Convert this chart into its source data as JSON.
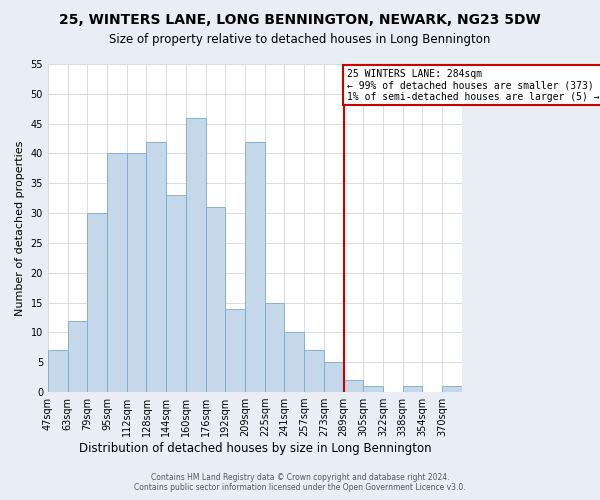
{
  "title": "25, WINTERS LANE, LONG BENNINGTON, NEWARK, NG23 5DW",
  "subtitle": "Size of property relative to detached houses in Long Bennington",
  "xlabel": "Distribution of detached houses by size in Long Bennington",
  "ylabel": "Number of detached properties",
  "footer_line1": "Contains HM Land Registry data © Crown copyright and database right 2024.",
  "footer_line2": "Contains public sector information licensed under the Open Government Licence v3.0.",
  "bin_labels": [
    "47sqm",
    "63sqm",
    "79sqm",
    "95sqm",
    "112sqm",
    "128sqm",
    "144sqm",
    "160sqm",
    "176sqm",
    "192sqm",
    "209sqm",
    "225sqm",
    "241sqm",
    "257sqm",
    "273sqm",
    "289sqm",
    "305sqm",
    "322sqm",
    "338sqm",
    "354sqm",
    "370sqm"
  ],
  "bar_heights": [
    7,
    12,
    30,
    40,
    40,
    42,
    33,
    46,
    31,
    14,
    42,
    15,
    10,
    7,
    5,
    2,
    1,
    0,
    1,
    0,
    1
  ],
  "bar_color": "#c5d8ea",
  "bar_edge_color": "#7aaac8",
  "grid_color": "#d0d8e0",
  "vline_x": 15,
  "vline_color": "#cc0000",
  "annotation_text": "25 WINTERS LANE: 284sqm\n← 99% of detached houses are smaller (373)\n1% of semi-detached houses are larger (5) →",
  "annotation_box_color": "#cc0000",
  "ylim": [
    0,
    55
  ],
  "yticks": [
    0,
    5,
    10,
    15,
    20,
    25,
    30,
    35,
    40,
    45,
    50,
    55
  ],
  "bg_color": "#e8eef4",
  "plot_bg_color": "#ffffff",
  "title_fontsize": 10,
  "subtitle_fontsize": 8.5,
  "ylabel_fontsize": 8,
  "xlabel_fontsize": 8.5,
  "tick_fontsize": 7,
  "footer_fontsize": 5.5
}
